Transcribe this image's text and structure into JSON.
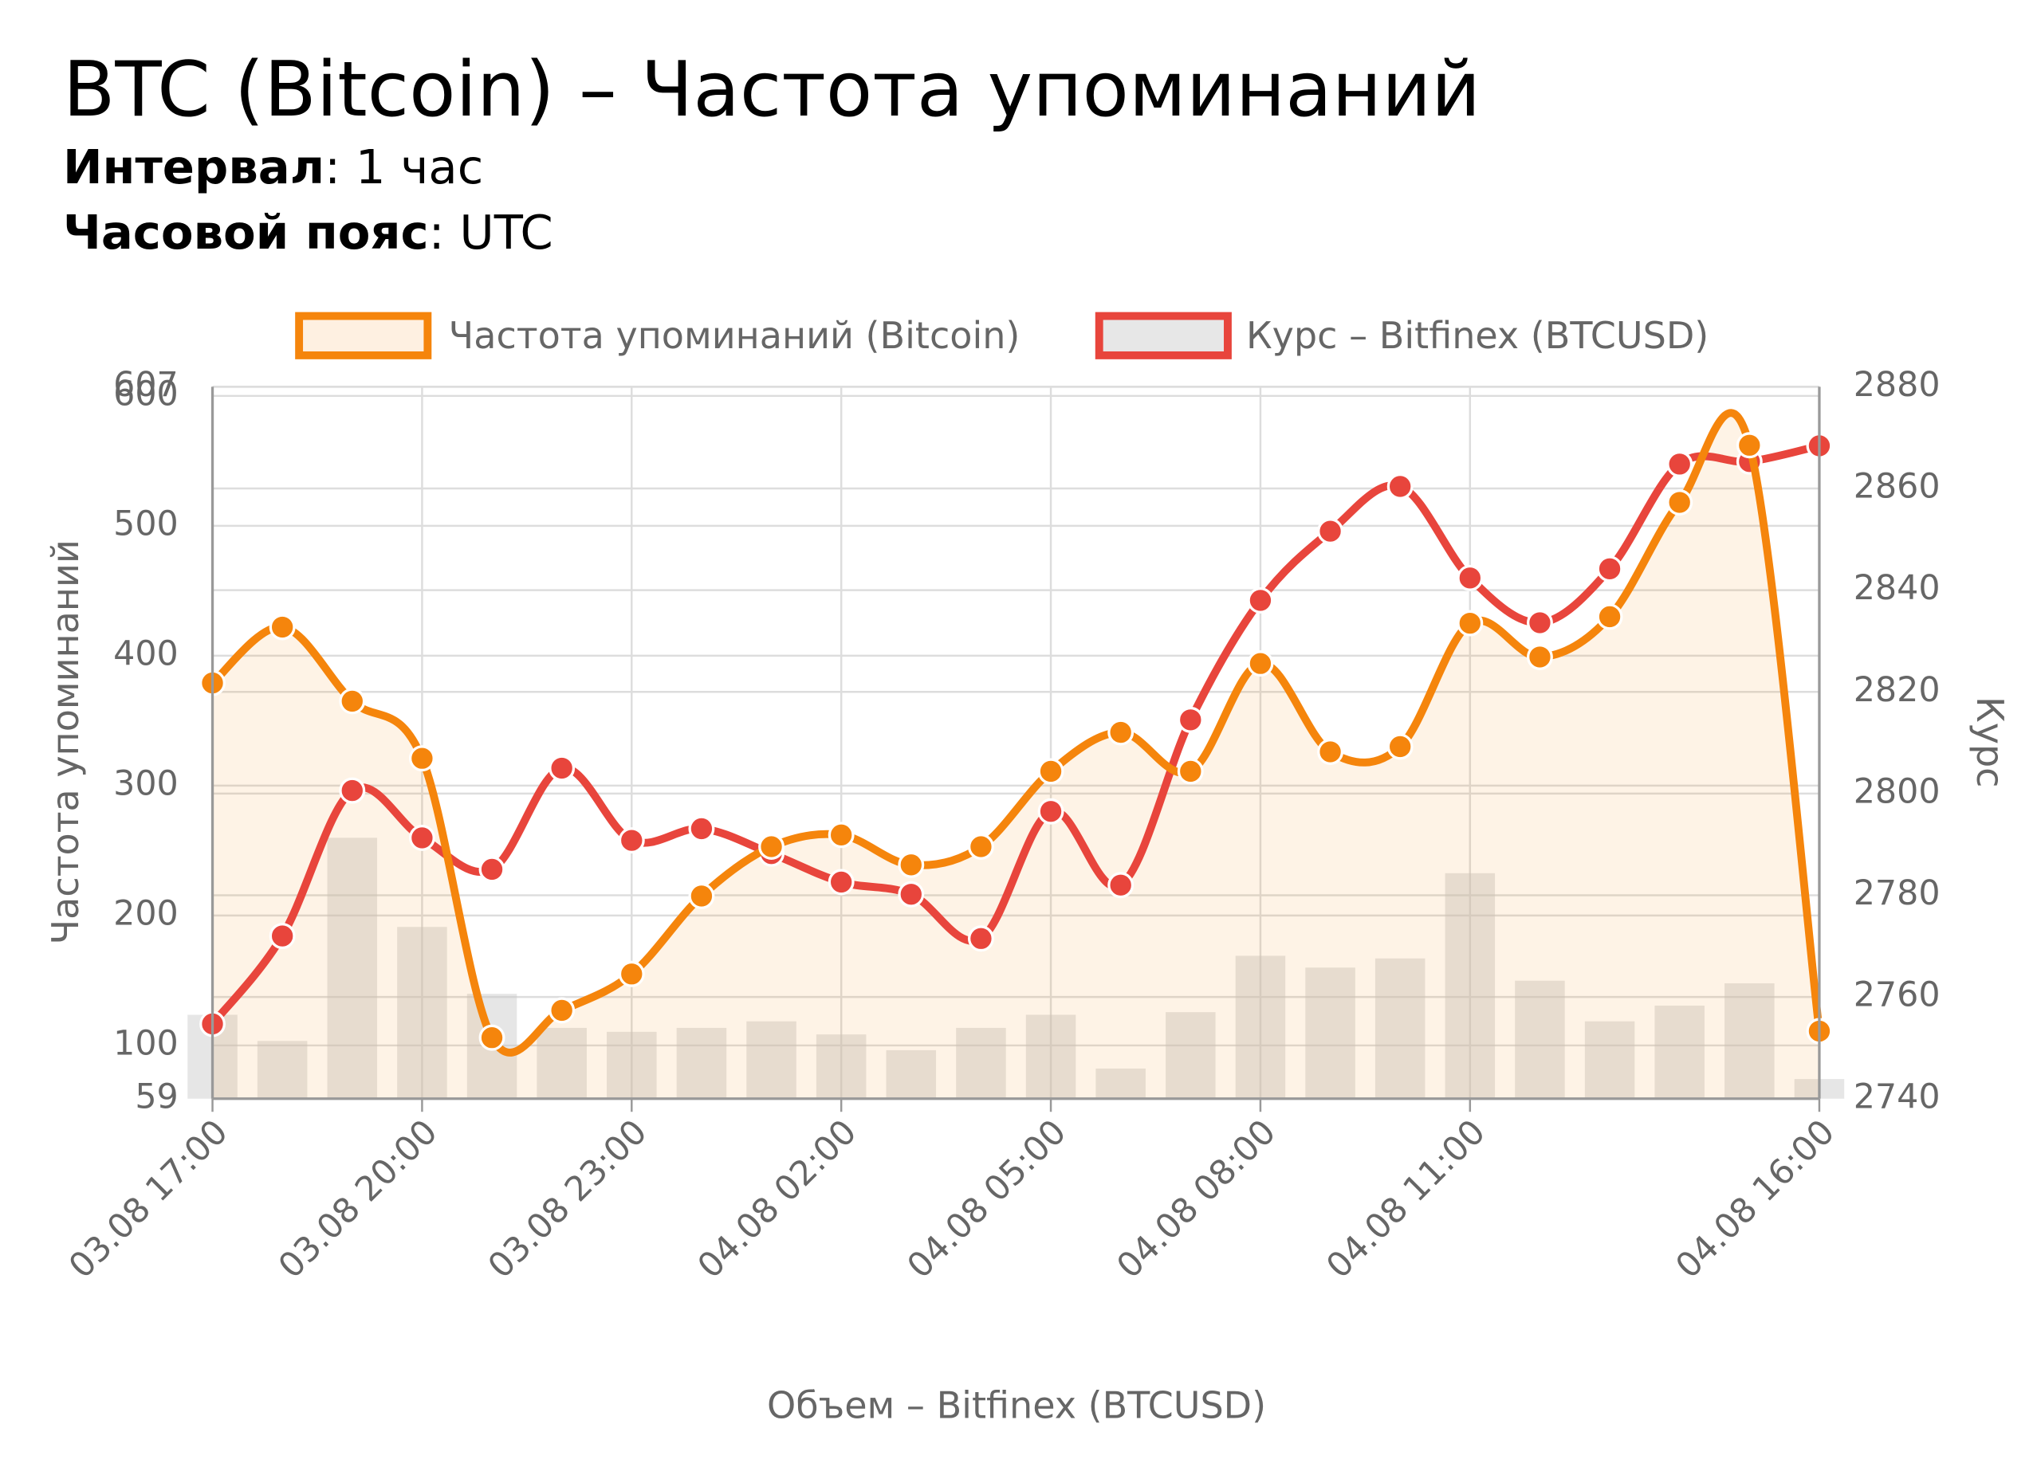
{
  "chart_data": {
    "type": "line",
    "title": "BTC (Bitcoin) – Частота упоминаний",
    "subtitle": [
      [
        "Интервал",
        ": 1 час"
      ],
      [
        "Часовой пояс",
        ": UTC"
      ]
    ],
    "ylabel": "Частота упоминаний",
    "y2label": "Курс",
    "categories": [
      "03.08 17:00",
      null,
      null,
      "03.08 20:00",
      null,
      null,
      "03.08 23:00",
      null,
      null,
      "04.08 02:00",
      null,
      null,
      "04.08 05:00",
      null,
      null,
      "04.08 08:00",
      null,
      null,
      "04.08 11:00",
      null,
      null,
      null,
      null,
      "04.08 16:00"
    ],
    "series": [
      {
        "name": "Частота упоминаний (Bitcoin)",
        "color": "#f5850c",
        "values": [
          379,
          422,
          365,
          321,
          106,
          127,
          155,
          215,
          253,
          262,
          239,
          253,
          311,
          341,
          311,
          394,
          326,
          330,
          425,
          399,
          430,
          518,
          562,
          111
        ]
      },
      {
        "name": "Курс – Bitfinex (BTCUSD)",
        "color": "#e8453c",
        "axis": "y2",
        "values": [
          2754.7,
          2772,
          2800.6,
          2791.3,
          2785.1,
          2805,
          2790.8,
          2793.1,
          2788.2,
          2782.6,
          2780.2,
          2771.5,
          2796.5,
          2782,
          2814.5,
          2838,
          2851.6,
          2860.4,
          2842.4,
          2833.6,
          2844.2,
          2864.8,
          2865.3,
          2868.4
        ]
      },
      {
        "name": "Объем – Bitfinex (BTCUSD)",
        "type": "bar",
        "color": "#c8c8c8",
        "axis": "y3",
        "values": [
          64,
          44,
          199,
          131,
          80,
          54,
          51,
          54,
          59,
          49,
          37,
          54,
          64,
          23,
          66,
          109,
          100,
          107,
          172,
          90,
          59,
          71,
          88,
          15
        ]
      }
    ],
    "ylim": [
      59,
      607
    ],
    "yticks": [
      59,
      100,
      200,
      300,
      400,
      500,
      600,
      607
    ],
    "y2lim": [
      2740,
      2880
    ],
    "y2ticks": [
      2740,
      2760,
      2780,
      2800,
      2820,
      2840,
      2860,
      2880
    ],
    "y3lim": [
      0,
      543
    ],
    "grid": true
  }
}
